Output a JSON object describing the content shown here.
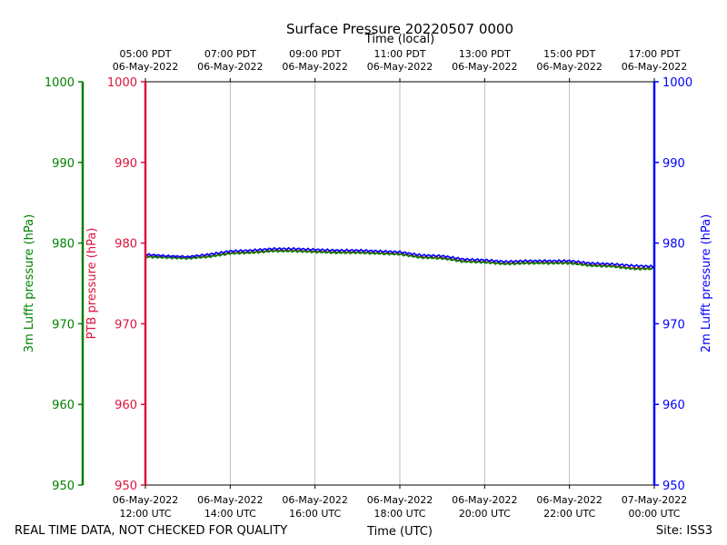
{
  "chart_data": {
    "type": "line",
    "title": "Surface Pressure 20220507 0000",
    "top_xlabel": "Time (local)",
    "xlabel": "Time (UTC)",
    "footer_left": "REAL TIME DATA, NOT CHECKED FOR QUALITY",
    "footer_right": "Site: ISS3",
    "x_range_hours_utc": [
      12,
      24
    ],
    "ylim": [
      950,
      1000
    ],
    "y_ticks": [
      950,
      960,
      970,
      980,
      990,
      1000
    ],
    "grid": true,
    "axes": {
      "left_outer": {
        "label": "3m Lufft pressure (hPa)",
        "color": "#008000"
      },
      "left_inner": {
        "label": "PTB pressure (hPa)",
        "color": "#dc143c"
      },
      "right": {
        "label": "2m Lufft pressure (hPa)",
        "color": "#0000ff"
      }
    },
    "bottom_ticks": [
      {
        "hour": 12,
        "line1": "06-May-2022",
        "line2": "12:00 UTC"
      },
      {
        "hour": 14,
        "line1": "06-May-2022",
        "line2": "14:00 UTC"
      },
      {
        "hour": 16,
        "line1": "06-May-2022",
        "line2": "16:00 UTC"
      },
      {
        "hour": 18,
        "line1": "06-May-2022",
        "line2": "18:00 UTC"
      },
      {
        "hour": 20,
        "line1": "06-May-2022",
        "line2": "20:00 UTC"
      },
      {
        "hour": 22,
        "line1": "06-May-2022",
        "line2": "22:00 UTC"
      },
      {
        "hour": 24,
        "line1": "07-May-2022",
        "line2": "00:00 UTC"
      }
    ],
    "top_ticks": [
      {
        "hour": 12,
        "line1": "05:00 PDT",
        "line2": "06-May-2022"
      },
      {
        "hour": 14,
        "line1": "07:00 PDT",
        "line2": "06-May-2022"
      },
      {
        "hour": 16,
        "line1": "09:00 PDT",
        "line2": "06-May-2022"
      },
      {
        "hour": 18,
        "line1": "11:00 PDT",
        "line2": "06-May-2022"
      },
      {
        "hour": 20,
        "line1": "13:00 PDT",
        "line2": "06-May-2022"
      },
      {
        "hour": 22,
        "line1": "15:00 PDT",
        "line2": "06-May-2022"
      },
      {
        "hour": 24,
        "line1": "17:00 PDT",
        "line2": "06-May-2022"
      }
    ],
    "x": [
      12.0,
      12.5,
      13.0,
      13.5,
      14.0,
      14.5,
      15.0,
      15.5,
      16.0,
      16.5,
      17.0,
      17.5,
      18.0,
      18.5,
      19.0,
      19.5,
      20.0,
      20.5,
      21.0,
      21.5,
      22.0,
      22.5,
      23.0,
      23.5,
      24.0
    ],
    "series": [
      {
        "name": "PTB pressure",
        "color": "#dc143c",
        "values": [
          978.4,
          978.3,
          978.2,
          978.4,
          978.8,
          978.9,
          979.1,
          979.1,
          979.0,
          978.9,
          978.9,
          978.8,
          978.7,
          978.3,
          978.2,
          977.8,
          977.7,
          977.5,
          977.6,
          977.6,
          977.6,
          977.3,
          977.2,
          976.9,
          976.9
        ]
      },
      {
        "name": "3m Lufft pressure",
        "color": "#008000",
        "values": [
          978.3,
          978.2,
          978.1,
          978.3,
          978.7,
          978.8,
          979.0,
          979.0,
          978.9,
          978.8,
          978.8,
          978.7,
          978.6,
          978.2,
          978.1,
          977.7,
          977.6,
          977.4,
          977.5,
          977.5,
          977.5,
          977.2,
          977.1,
          976.8,
          976.8
        ]
      },
      {
        "name": "2m Lufft pressure",
        "color": "#0000ff",
        "values": [
          978.6,
          978.4,
          978.3,
          978.6,
          979.0,
          979.1,
          979.3,
          979.3,
          979.2,
          979.1,
          979.1,
          979.0,
          978.9,
          978.5,
          978.4,
          978.0,
          977.9,
          977.7,
          977.8,
          977.8,
          977.8,
          977.5,
          977.4,
          977.2,
          977.1
        ]
      }
    ]
  }
}
